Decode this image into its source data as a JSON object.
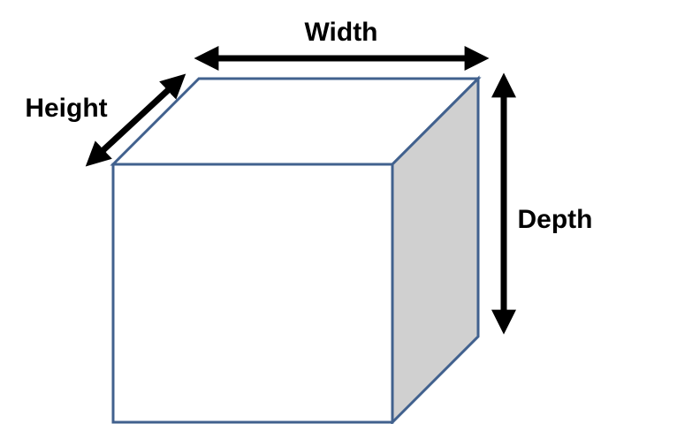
{
  "labels": {
    "width": "Width",
    "height": "Height",
    "depth": "Depth"
  },
  "colors": {
    "outline": "#41618E",
    "front_face": "#FFFFFF",
    "top_face": "#FFFFFF",
    "side_face": "#D0D0D0",
    "arrow": "#000000",
    "text": "#000000"
  }
}
